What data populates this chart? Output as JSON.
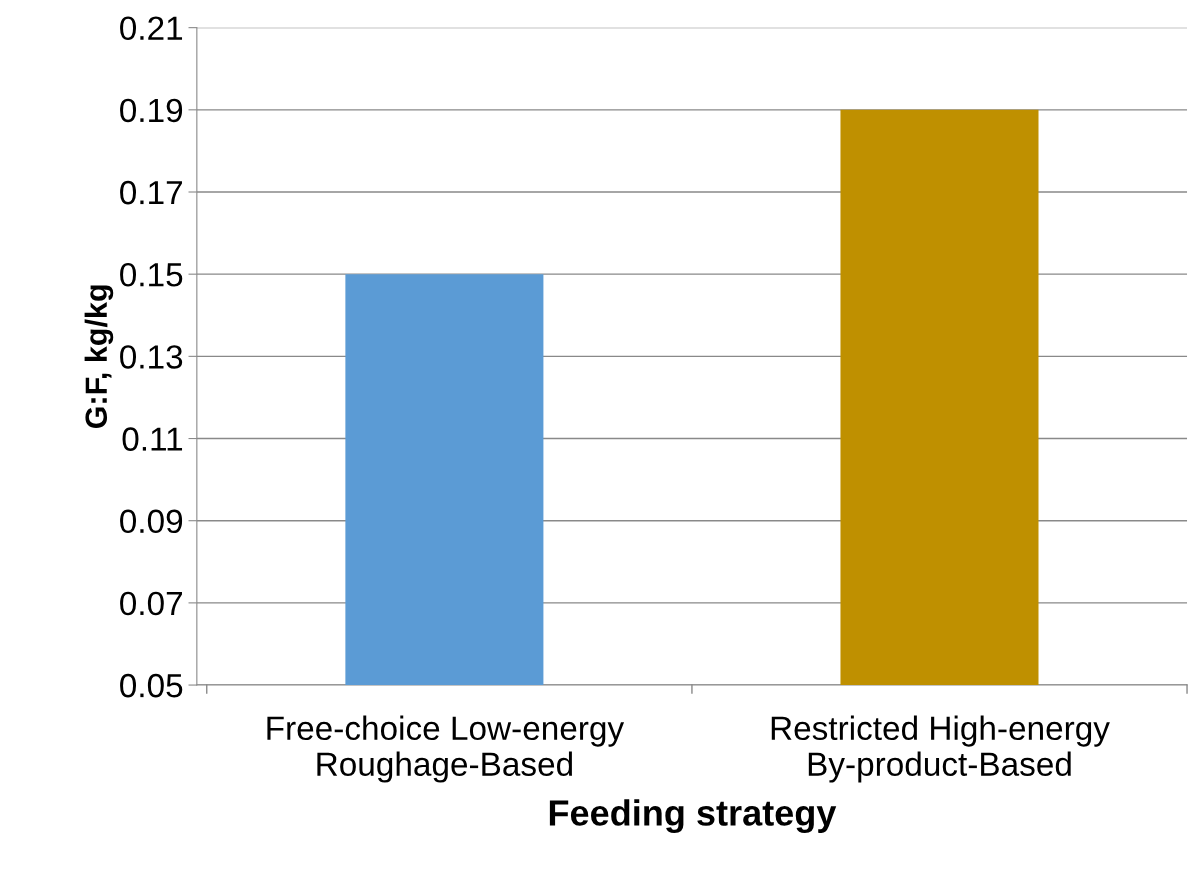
{
  "chart_data": {
    "type": "bar",
    "xlabel": "Feeding strategy",
    "ylabel": "G:F, kg/kg",
    "categories": [
      "Free-choice Low-energy\nRoughage-Based",
      "Restricted High-energy\nBy-product-Based"
    ],
    "values": [
      0.15,
      0.19
    ],
    "colors": [
      "#5b9bd5",
      "#bf9000"
    ],
    "ylim": [
      0.05,
      0.21
    ],
    "yticks": [
      0.05,
      0.07,
      0.09,
      0.11,
      0.13,
      0.15,
      0.17,
      0.19,
      0.21
    ],
    "grid": "y"
  }
}
